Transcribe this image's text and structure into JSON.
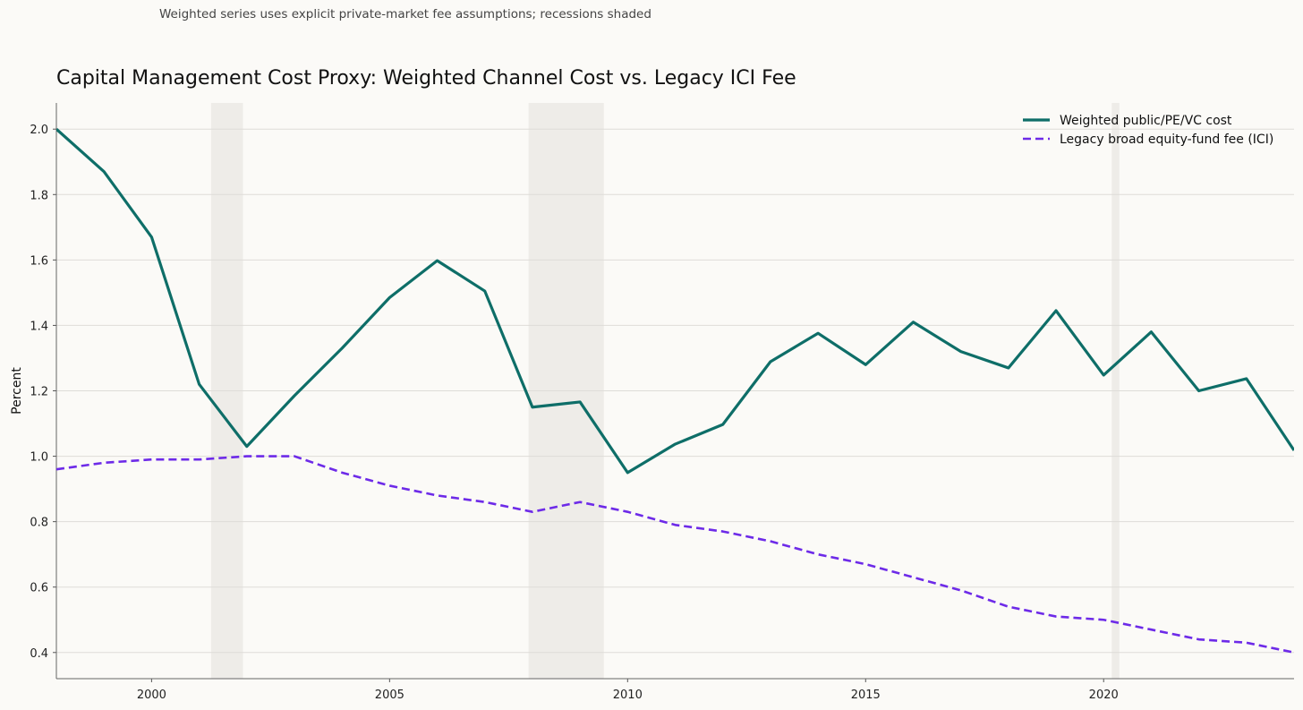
{
  "chart_data": {
    "type": "line",
    "subtitle": "Weighted series uses explicit private-market fee assumptions; recessions shaded",
    "title": "Capital Management Cost Proxy: Weighted Channel Cost vs. Legacy ICI Fee",
    "xlabel": "",
    "ylabel": "Percent",
    "xlim": [
      1998,
      2024
    ],
    "ylim": [
      0.32,
      2.08
    ],
    "xticks": [
      2000,
      2005,
      2010,
      2015,
      2020
    ],
    "yticks": [
      0.4,
      0.6,
      0.8,
      1.0,
      1.2,
      1.4,
      1.6,
      1.8,
      2.0
    ],
    "grid": "horizontal",
    "legend_position": "top-right",
    "recessions": [
      [
        2001.25,
        2001.92
      ],
      [
        2007.92,
        2009.5
      ],
      [
        2020.17,
        2020.33
      ]
    ],
    "x": [
      1998,
      1999,
      2000,
      2001,
      2002,
      2003,
      2004,
      2005,
      2006,
      2007,
      2008,
      2009,
      2010,
      2011,
      2012,
      2013,
      2014,
      2015,
      2016,
      2017,
      2018,
      2019,
      2020,
      2021,
      2022,
      2023,
      2024
    ],
    "series": [
      {
        "name": "Weighted public/PE/VC cost",
        "color": "#0e6e68",
        "style": "solid",
        "values": [
          2.0,
          1.87,
          1.67,
          1.22,
          1.03,
          1.185,
          1.33,
          1.485,
          1.598,
          1.505,
          1.15,
          1.166,
          0.95,
          1.037,
          1.097,
          1.289,
          1.376,
          1.28,
          1.41,
          1.32,
          1.27,
          1.445,
          1.248,
          1.38,
          1.2,
          1.237,
          1.018
        ]
      },
      {
        "name": "Legacy broad equity-fund fee (ICI)",
        "color": "#6d2ae8",
        "style": "dashed",
        "values": [
          0.96,
          0.98,
          0.99,
          0.99,
          1.0,
          1.0,
          0.95,
          0.91,
          0.88,
          0.86,
          0.83,
          0.86,
          0.83,
          0.79,
          0.77,
          0.74,
          0.7,
          0.67,
          0.63,
          0.59,
          0.54,
          0.51,
          0.5,
          0.47,
          0.44,
          0.43,
          0.4
        ]
      }
    ]
  }
}
